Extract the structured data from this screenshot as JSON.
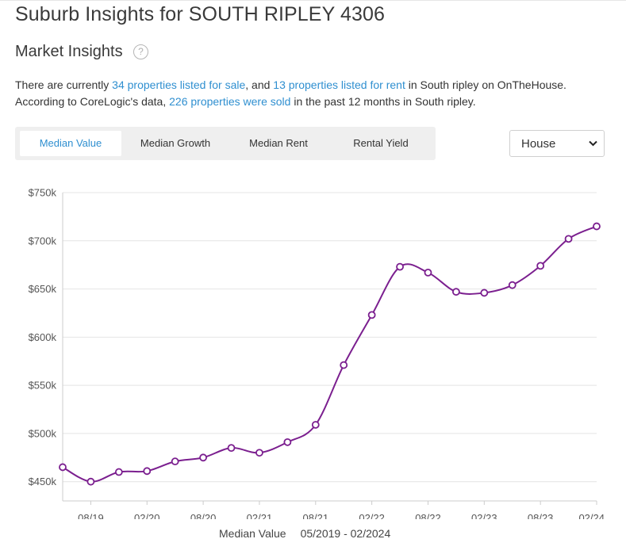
{
  "page": {
    "title": "Suburb Insights for SOUTH RIPLEY 4306"
  },
  "market": {
    "heading": "Market Insights",
    "help_symbol": "?",
    "help_icon": "question-circle-icon",
    "summary": {
      "t1": "There are currently ",
      "sale_link": "34 properties listed for sale",
      "t2": ", and ",
      "rent_link": "13 properties listed for rent",
      "t3": " in South ripley on OnTheHouse.",
      "t4": "According to CoreLogic's data, ",
      "sold_link": "226 properties were sold",
      "t5": " in the past 12 months in South ripley."
    }
  },
  "tabs": {
    "items": [
      {
        "label": "Median Value",
        "active": true
      },
      {
        "label": "Median Growth",
        "active": false
      },
      {
        "label": "Median Rent",
        "active": false
      },
      {
        "label": "Rental Yield",
        "active": false
      }
    ]
  },
  "property_type": {
    "selected": "House",
    "options": [
      "House"
    ]
  },
  "colors": {
    "link": "#2f8fd0",
    "series": "#7b1f8f",
    "tab_bar_bg": "#efefef"
  },
  "chart_data": {
    "type": "line",
    "x": [
      "05/19",
      "08/19",
      "11/19",
      "02/20",
      "05/20",
      "08/20",
      "11/20",
      "02/21",
      "05/21",
      "08/21",
      "11/21",
      "02/22",
      "05/22",
      "08/22",
      "11/22",
      "02/23",
      "05/23",
      "08/23",
      "11/23",
      "02/24"
    ],
    "series": [
      {
        "values": [
          465000,
          450000,
          460000,
          461000,
          471000,
          475000,
          485000,
          480000,
          491000,
          509000,
          571000,
          623000,
          673000,
          667000,
          647000,
          646000,
          654000,
          674000,
          702000,
          715000
        ]
      }
    ],
    "y_ticks": [
      "$450k",
      "$500k",
      "$550k",
      "$600k",
      "$650k",
      "$700k",
      "$750k"
    ],
    "y_tick_values": [
      450000,
      500000,
      550000,
      600000,
      650000,
      700000,
      750000
    ],
    "x_tick_labels": [
      "08/19",
      "02/20",
      "08/20",
      "02/21",
      "08/21",
      "02/22",
      "08/22",
      "02/23",
      "08/23",
      "02/24"
    ],
    "ylim": [
      430000,
      750000
    ],
    "grid": true,
    "xlabel": "Median Value",
    "range_label": "05/2019 - 02/2024"
  }
}
